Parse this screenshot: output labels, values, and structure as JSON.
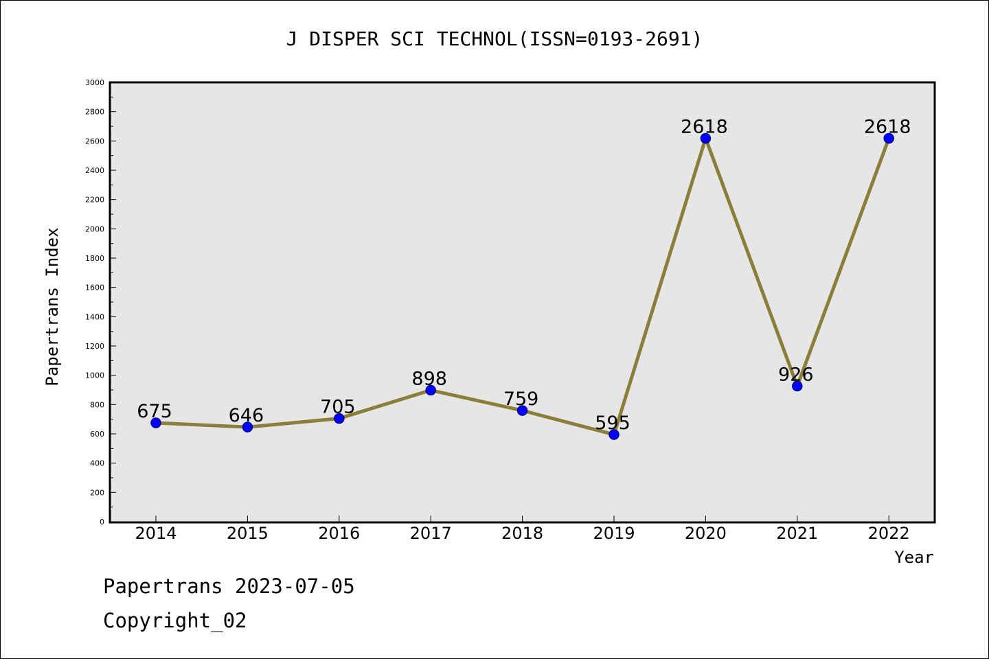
{
  "chart_data": {
    "type": "line",
    "title": "J DISPER SCI TECHNOL(ISSN=0193-2691)",
    "xlabel": "Year",
    "ylabel": "Papertrans Index",
    "categories": [
      "2014",
      "2015",
      "2016",
      "2017",
      "2018",
      "2019",
      "2020",
      "2021",
      "2022"
    ],
    "series": [
      {
        "values": [
          675,
          646,
          705,
          898,
          759,
          595,
          2618,
          926,
          2618
        ]
      }
    ],
    "data_labels": [
      "675",
      "646",
      "705",
      "898",
      "759",
      "595",
      "2618",
      "926",
      "2618"
    ],
    "ylim": [
      0,
      3000
    ],
    "yticks": [
      "0",
      "200",
      "400",
      "600",
      "800",
      "1000",
      "1200",
      "1400",
      "1600",
      "1800",
      "2000",
      "2200",
      "2400",
      "2600",
      "2800",
      "3000"
    ],
    "grid": false,
    "legend": "none",
    "colors": {
      "line": "#8b7d3a",
      "marker_fill": "#0000ff",
      "marker_stroke": "#00008b",
      "plot_background": "#e6e6e6"
    }
  },
  "footer": {
    "line1": "Papertrans 2023-07-05",
    "line2": "Copyright_02"
  }
}
